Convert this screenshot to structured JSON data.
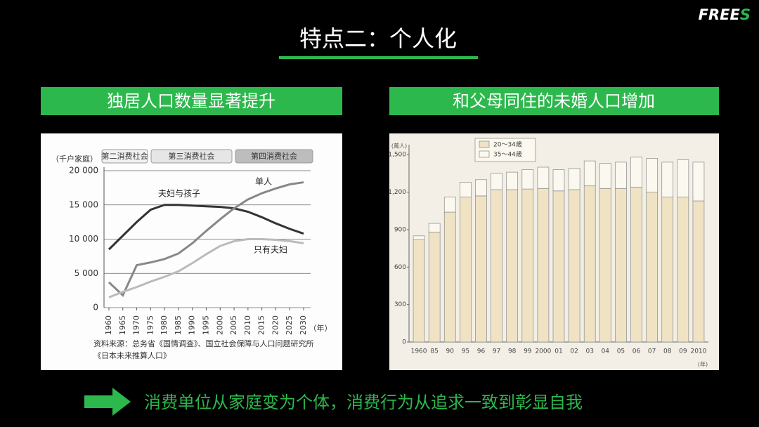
{
  "slide": {
    "logo": "FREES",
    "title": "特点二：个人化",
    "conclusion": "消费单位从家庭变为个体，消费行为从追求一致到彰显自我"
  },
  "chart_data": [
    {
      "type": "line",
      "title": "独居人口数量显著提升",
      "y_unit": "（千户家庭）",
      "x_unit": "（年）",
      "eras": [
        "第二消费社会",
        "第三消费社会",
        "第四消费社会"
      ],
      "categories": [
        "1960",
        "1965",
        "1970",
        "1975",
        "1980",
        "1985",
        "1990",
        "1995",
        "2000",
        "2005",
        "2010",
        "2015",
        "2020",
        "2025",
        "2030"
      ],
      "series": [
        {
          "name": "夫妇与孩子",
          "color": "#333333",
          "values": [
            8500,
            10500,
            12500,
            14300,
            15000,
            15000,
            14900,
            14800,
            14700,
            14500,
            14000,
            13200,
            12300,
            11500,
            10800
          ]
        },
        {
          "name": "单人",
          "color": "#888888",
          "values": [
            3700,
            1800,
            6200,
            6600,
            7100,
            7900,
            9400,
            11200,
            12900,
            14500,
            15800,
            16700,
            17400,
            18000,
            18300
          ]
        },
        {
          "name": "只有夫妇",
          "color": "#bbbbbb",
          "values": [
            1500,
            2300,
            3000,
            3800,
            4500,
            5300,
            6500,
            7800,
            9000,
            9700,
            10000,
            10000,
            9900,
            9700,
            9400
          ]
        }
      ],
      "ylim": [
        0,
        20000
      ],
      "yticks": [
        0,
        {
          "value": 5000,
          "label": "5 000"
        },
        {
          "value": 10000,
          "label": "10 000"
        },
        {
          "value": 15000,
          "label": "15 000"
        },
        {
          "value": 20000,
          "label": "20 000"
        }
      ],
      "grid": true,
      "source": [
        "资料来源：总务省《国情调查》、国立社会保障与人口问题研究所",
        "《日本未来推算人口》"
      ]
    },
    {
      "type": "stacked_bar",
      "title": "和父母同住的未婚人口增加",
      "y_unit": "(萬人)",
      "x_unit": "(年)",
      "categories": [
        "1960",
        "85",
        "90",
        "95",
        "96",
        "97",
        "98",
        "99",
        "2000",
        "01",
        "02",
        "03",
        "04",
        "05",
        "06",
        "07",
        "08",
        "09",
        "2010"
      ],
      "series": [
        {
          "name": "20～34歳",
          "color": "#efe3c4",
          "values": [
            820,
            880,
            1040,
            1160,
            1170,
            1220,
            1220,
            1225,
            1230,
            1210,
            1220,
            1250,
            1230,
            1230,
            1240,
            1200,
            1160,
            1160,
            1130
          ]
        },
        {
          "name": "35～44歳",
          "color": "#fbf8ef",
          "values": [
            30,
            70,
            120,
            120,
            130,
            130,
            140,
            155,
            170,
            170,
            170,
            200,
            200,
            210,
            240,
            270,
            280,
            300,
            310
          ]
        }
      ],
      "ylim": [
        0,
        1580
      ],
      "yticks": [
        0,
        300,
        600,
        900,
        {
          "value": 1200,
          "label": "1,200"
        },
        {
          "value": 1500,
          "label": "1,500"
        }
      ],
      "grid": false
    }
  ]
}
